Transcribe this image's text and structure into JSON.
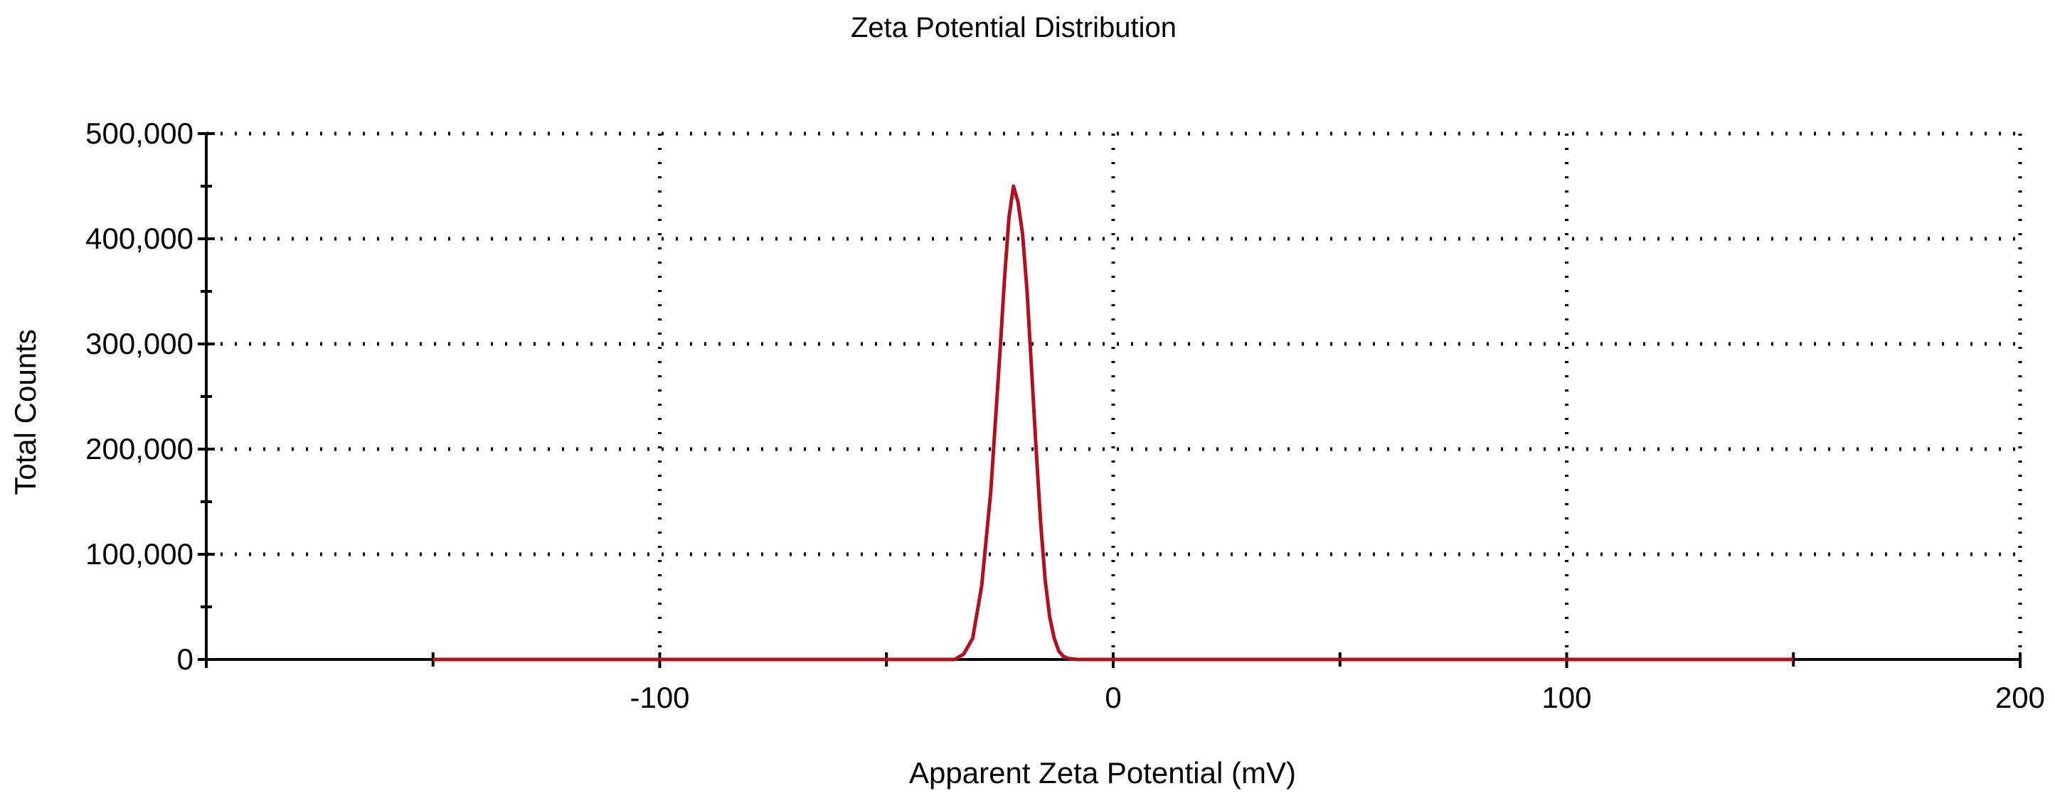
{
  "chart_data": {
    "type": "line",
    "title": "Zeta Potential Distribution",
    "xlabel": "Apparent Zeta Potential (mV)",
    "ylabel": "Total Counts",
    "xlim": [
      -200,
      200
    ],
    "ylim": [
      0,
      500000
    ],
    "x_ticks": [
      -100,
      0,
      100,
      200
    ],
    "x_tick_labels": [
      "-100",
      "0",
      "100",
      "200"
    ],
    "y_ticks": [
      0,
      100000,
      200000,
      300000,
      400000,
      500000
    ],
    "y_tick_labels": [
      "0",
      "100,000",
      "200,000",
      "300,000",
      "400,000",
      "500,000"
    ],
    "grid": true,
    "series": [
      {
        "color": "#b01020",
        "x": [
          -150,
          -35,
          -33,
          -31,
          -29,
          -27,
          -25,
          -24,
          -23,
          -22,
          -21,
          -20,
          -19,
          -18,
          -17,
          -16,
          -15,
          -14,
          -13,
          -12,
          -11,
          -10,
          -8,
          -5,
          0,
          150
        ],
        "y": [
          0,
          0,
          5000,
          20000,
          70000,
          160000,
          290000,
          360000,
          420000,
          450000,
          435000,
          405000,
          350000,
          275000,
          200000,
          130000,
          75000,
          40000,
          20000,
          8000,
          3000,
          1000,
          0,
          0,
          0,
          0
        ]
      }
    ]
  }
}
